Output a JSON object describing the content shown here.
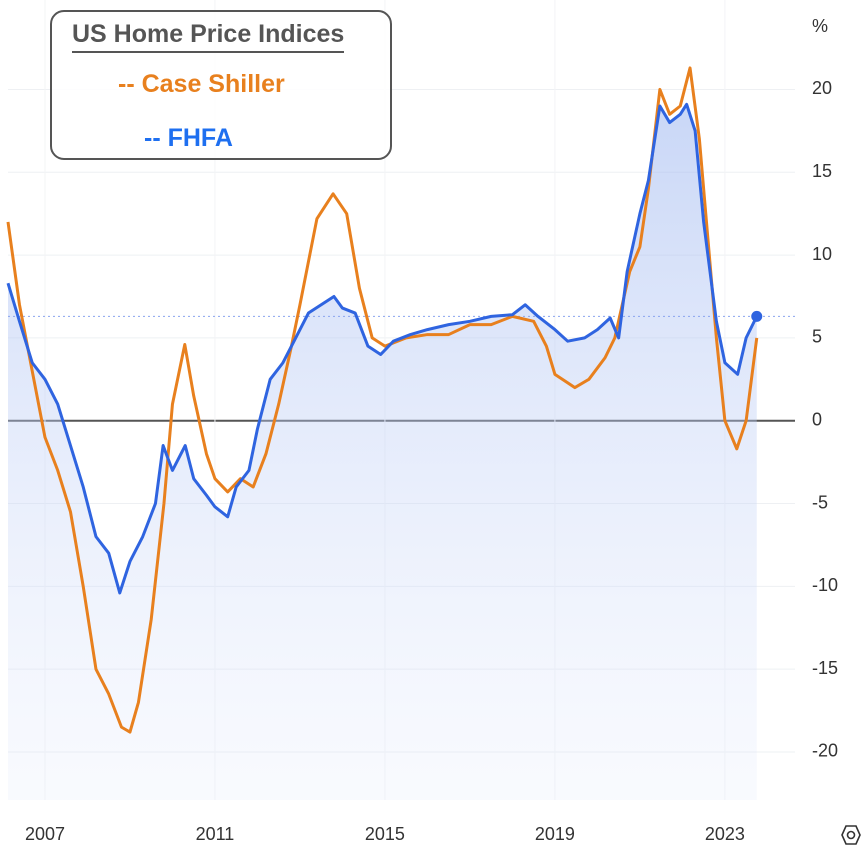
{
  "chart_data": {
    "type": "line",
    "title": "US Home Price Indices",
    "y_label": "%",
    "xlim": [
      2006.13,
      2024.65
    ],
    "ylim": [
      -22.9,
      25.4
    ],
    "xticks": [
      2007,
      2011,
      2015,
      2019,
      2023
    ],
    "yticks": [
      -20,
      -15,
      -10,
      -5,
      0,
      5,
      10,
      15,
      20
    ],
    "grid": true,
    "series": [
      {
        "name": "-- Case Shiller",
        "color": "#e8801e",
        "x": [
          2006.13,
          2006.4,
          2006.7,
          2007.0,
          2007.3,
          2007.6,
          2007.9,
          2008.2,
          2008.5,
          2008.8,
          2009.0,
          2009.2,
          2009.5,
          2009.8,
          2010.0,
          2010.29,
          2010.5,
          2010.8,
          2011.0,
          2011.3,
          2011.6,
          2011.9,
          2012.2,
          2012.5,
          2012.8,
          2013.0,
          2013.4,
          2013.78,
          2014.1,
          2014.4,
          2014.7,
          2015.0,
          2015.5,
          2016.0,
          2016.5,
          2017.0,
          2017.5,
          2018.0,
          2018.5,
          2018.8,
          2019.0,
          2019.47,
          2019.8,
          2020.18,
          2020.41,
          2020.76,
          2021.0,
          2021.2,
          2021.47,
          2021.7,
          2021.95,
          2022.18,
          2022.4,
          2022.6,
          2022.8,
          2023.0,
          2023.28,
          2023.5,
          2023.75
        ],
        "values": [
          12,
          7,
          3,
          -1,
          -3,
          -5.5,
          -10,
          -15,
          -16.5,
          -18.5,
          -18.8,
          -17,
          -12,
          -5,
          1,
          4.6,
          1.5,
          -2,
          -3.5,
          -4.3,
          -3.5,
          -4,
          -2,
          1,
          4.5,
          7,
          12.2,
          13.7,
          12.5,
          8,
          5,
          4.5,
          5,
          5.2,
          5.2,
          5.8,
          5.8,
          6.3,
          6,
          4.5,
          2.8,
          2,
          2.5,
          3.8,
          5,
          9,
          10.5,
          14,
          20,
          18.5,
          19,
          21.3,
          17,
          11,
          5,
          0,
          -1.7,
          0,
          5
        ]
      },
      {
        "name": "-- FHFA",
        "color": "#2f64e0",
        "x": [
          2006.13,
          2006.4,
          2006.7,
          2007.0,
          2007.3,
          2007.6,
          2007.9,
          2008.2,
          2008.5,
          2008.76,
          2009.0,
          2009.3,
          2009.6,
          2009.78,
          2010.0,
          2010.3,
          2010.5,
          2010.8,
          2011.0,
          2011.3,
          2011.5,
          2011.8,
          2012.0,
          2012.3,
          2012.6,
          2012.9,
          2013.2,
          2013.5,
          2013.8,
          2014.0,
          2014.3,
          2014.6,
          2014.9,
          2015.2,
          2015.6,
          2016.0,
          2016.5,
          2017.0,
          2017.5,
          2018.0,
          2018.3,
          2018.6,
          2019.0,
          2019.3,
          2019.7,
          2020.0,
          2020.3,
          2020.5,
          2020.7,
          2021.0,
          2021.2,
          2021.47,
          2021.7,
          2021.95,
          2022.1,
          2022.3,
          2022.5,
          2022.8,
          2023.0,
          2023.3,
          2023.5,
          2023.75
        ],
        "values": [
          8.3,
          6,
          3.5,
          2.5,
          1,
          -1.5,
          -4,
          -7,
          -8,
          -10.4,
          -8.5,
          -7,
          -5,
          -1.5,
          -3,
          -1.5,
          -3.5,
          -4.5,
          -5.2,
          -5.8,
          -4,
          -3,
          -0.5,
          2.5,
          3.5,
          5,
          6.5,
          7,
          7.5,
          6.8,
          6.5,
          4.5,
          4,
          4.8,
          5.2,
          5.5,
          5.8,
          6,
          6.3,
          6.4,
          7,
          6.3,
          5.5,
          4.8,
          5,
          5.5,
          6.2,
          5,
          9,
          12.5,
          14.5,
          19,
          18,
          18.5,
          19.1,
          17.5,
          12,
          6,
          3.5,
          2.8,
          5,
          6.3
        ]
      }
    ]
  }
}
